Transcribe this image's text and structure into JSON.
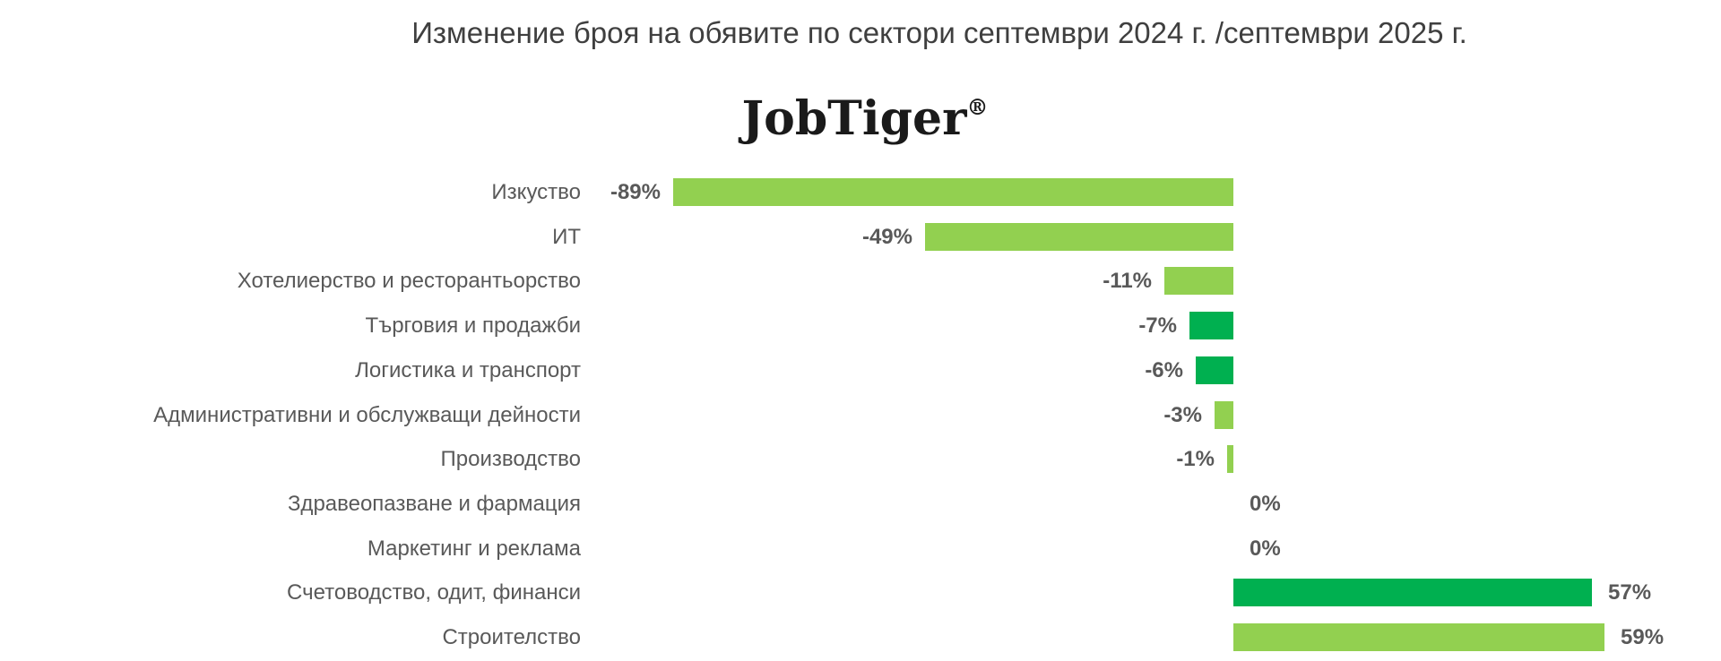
{
  "title": "Изменение броя на обявите по сектори септември 2024 г. /септември 2025 г.",
  "logo": {
    "text": "JobTiger",
    "registered_mark": "®"
  },
  "colors": {
    "light_green": "#92d050",
    "dark_green": "#00b050",
    "label_gray": "#595959",
    "title_gray": "#3f3f3f"
  },
  "chart_data": {
    "type": "bar",
    "orientation": "horizontal",
    "title": "Изменение броя на обявите по сектори септември 2024 г. /септември 2025 г.",
    "xlabel": "",
    "ylabel": "",
    "xlim": [
      -100,
      75
    ],
    "grid": false,
    "legend": false,
    "value_format": "percent",
    "categories": [
      "Изкуство",
      "ИТ",
      "Хотелиерство и ресторантьорство",
      "Търговия и продажби",
      "Логистика и транспорт",
      "Административни и обслужващи дейности",
      "Производство",
      "Здравеопазване и фармация",
      "Маркетинг и реклама",
      "Счетоводство, одит, финанси",
      "Строителство"
    ],
    "values": [
      -89,
      -49,
      -11,
      -7,
      -6,
      -3,
      -1,
      0,
      0,
      57,
      59
    ],
    "value_labels": [
      "-89%",
      "-49%",
      "-11%",
      "-7%",
      "-6%",
      "-3%",
      "-1%",
      "0%",
      "0%",
      "57%",
      "59%"
    ],
    "bar_color_keys": [
      "light_green",
      "light_green",
      "light_green",
      "dark_green",
      "dark_green",
      "light_green",
      "light_green",
      "none",
      "none",
      "dark_green",
      "light_green"
    ]
  }
}
